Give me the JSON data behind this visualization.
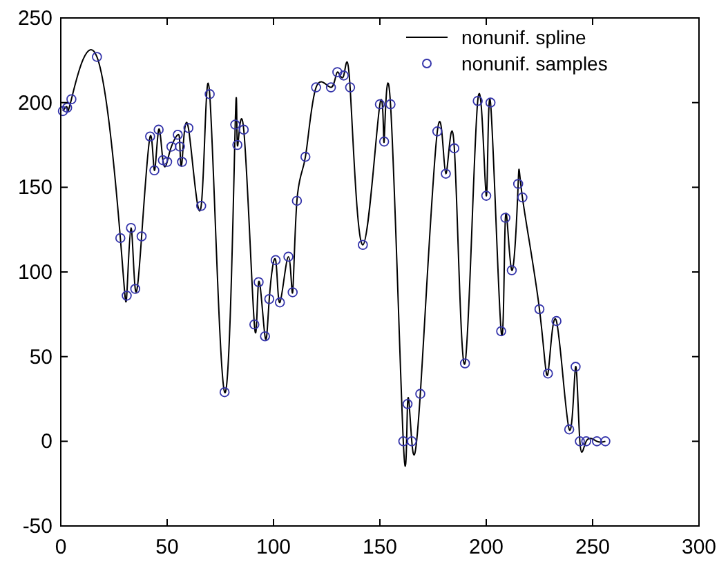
{
  "chart_data": {
    "type": "line",
    "xlim": [
      0,
      300
    ],
    "ylim": [
      -50,
      250
    ],
    "xticks": [
      0,
      50,
      100,
      150,
      200,
      250,
      300
    ],
    "yticks": [
      -50,
      0,
      50,
      100,
      150,
      200,
      250
    ],
    "grid": false,
    "legend": "top right",
    "x": [
      1,
      3,
      5,
      17,
      28,
      31,
      33,
      35,
      38,
      42,
      44,
      46,
      48,
      50,
      52,
      55,
      56,
      57,
      60,
      66,
      70,
      77,
      82,
      83,
      86,
      91,
      93,
      96,
      98,
      101,
      103,
      107,
      109,
      111,
      115,
      120,
      127,
      130,
      133,
      136,
      142,
      150,
      152,
      155,
      161,
      163,
      165,
      169,
      177,
      181,
      185,
      190,
      196,
      200,
      202,
      207,
      209,
      212,
      215,
      217,
      225,
      229,
      233,
      239,
      242,
      244,
      247,
      252,
      256
    ],
    "series": [
      {
        "name": "nonunif. spline",
        "color": "#000000",
        "marker": "none",
        "line_style": "solid",
        "values": [
          195,
          197,
          202,
          227,
          120,
          86,
          126,
          90,
          121,
          180,
          160,
          184,
          166,
          165,
          174,
          181,
          174,
          165,
          185,
          139,
          205,
          29,
          187,
          175,
          184,
          69,
          94,
          62,
          84,
          107,
          82,
          109,
          88,
          142,
          168,
          209,
          209,
          218,
          216,
          209,
          116,
          199,
          177,
          199,
          0,
          22,
          0,
          28,
          183,
          158,
          173,
          46,
          201,
          145,
          200,
          65,
          132,
          101,
          152,
          144,
          78,
          40,
          71,
          7,
          44,
          0,
          0,
          0,
          0
        ]
      },
      {
        "name": "nonunif. samples",
        "type": "scatter",
        "color": "#3333aa",
        "marker": "circle",
        "values": [
          195,
          197,
          202,
          227,
          120,
          86,
          126,
          90,
          121,
          180,
          160,
          184,
          166,
          165,
          174,
          181,
          174,
          165,
          185,
          139,
          205,
          29,
          187,
          175,
          184,
          69,
          94,
          62,
          84,
          107,
          82,
          109,
          88,
          142,
          168,
          209,
          209,
          218,
          216,
          209,
          116,
          199,
          177,
          199,
          0,
          22,
          0,
          28,
          183,
          158,
          173,
          46,
          201,
          145,
          200,
          65,
          132,
          101,
          152,
          144,
          78,
          40,
          71,
          7,
          44,
          0,
          0,
          0,
          0
        ]
      }
    ]
  }
}
